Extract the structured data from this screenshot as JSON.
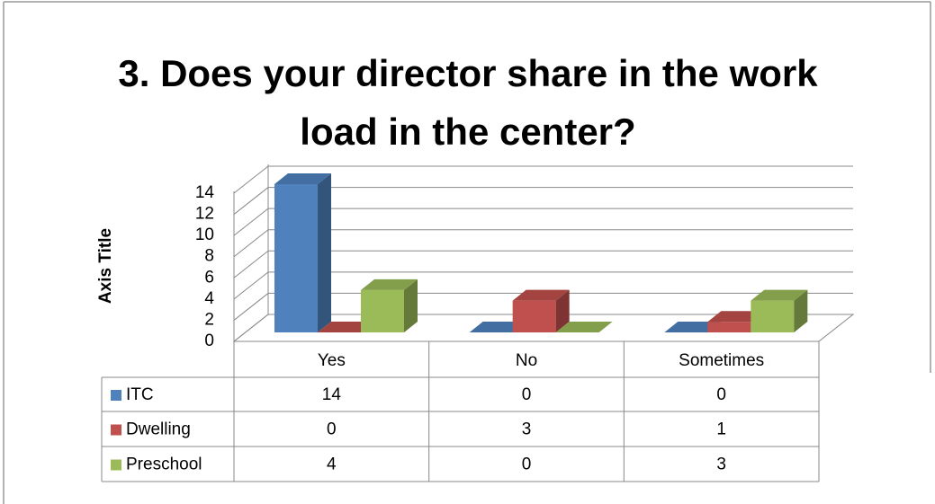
{
  "chart_data": {
    "type": "bar3d",
    "title_lines": [
      "3. Does your director share in the work",
      "load in the center?"
    ],
    "y_axis_label": "Axis Title",
    "categories": [
      "Yes",
      "No",
      "Sometimes"
    ],
    "series": [
      {
        "name": "ITC",
        "color": "#4f81bd",
        "values": [
          14,
          0,
          0
        ]
      },
      {
        "name": "Dwelling",
        "color": "#c0504d",
        "values": [
          0,
          3,
          1
        ]
      },
      {
        "name": "Preschool",
        "color": "#9bbb59",
        "values": [
          4,
          0,
          3
        ]
      }
    ],
    "ylim": [
      0,
      14
    ],
    "yticks": [
      0,
      2,
      4,
      6,
      8,
      10,
      12,
      14
    ],
    "grid": true,
    "data_table": true
  }
}
